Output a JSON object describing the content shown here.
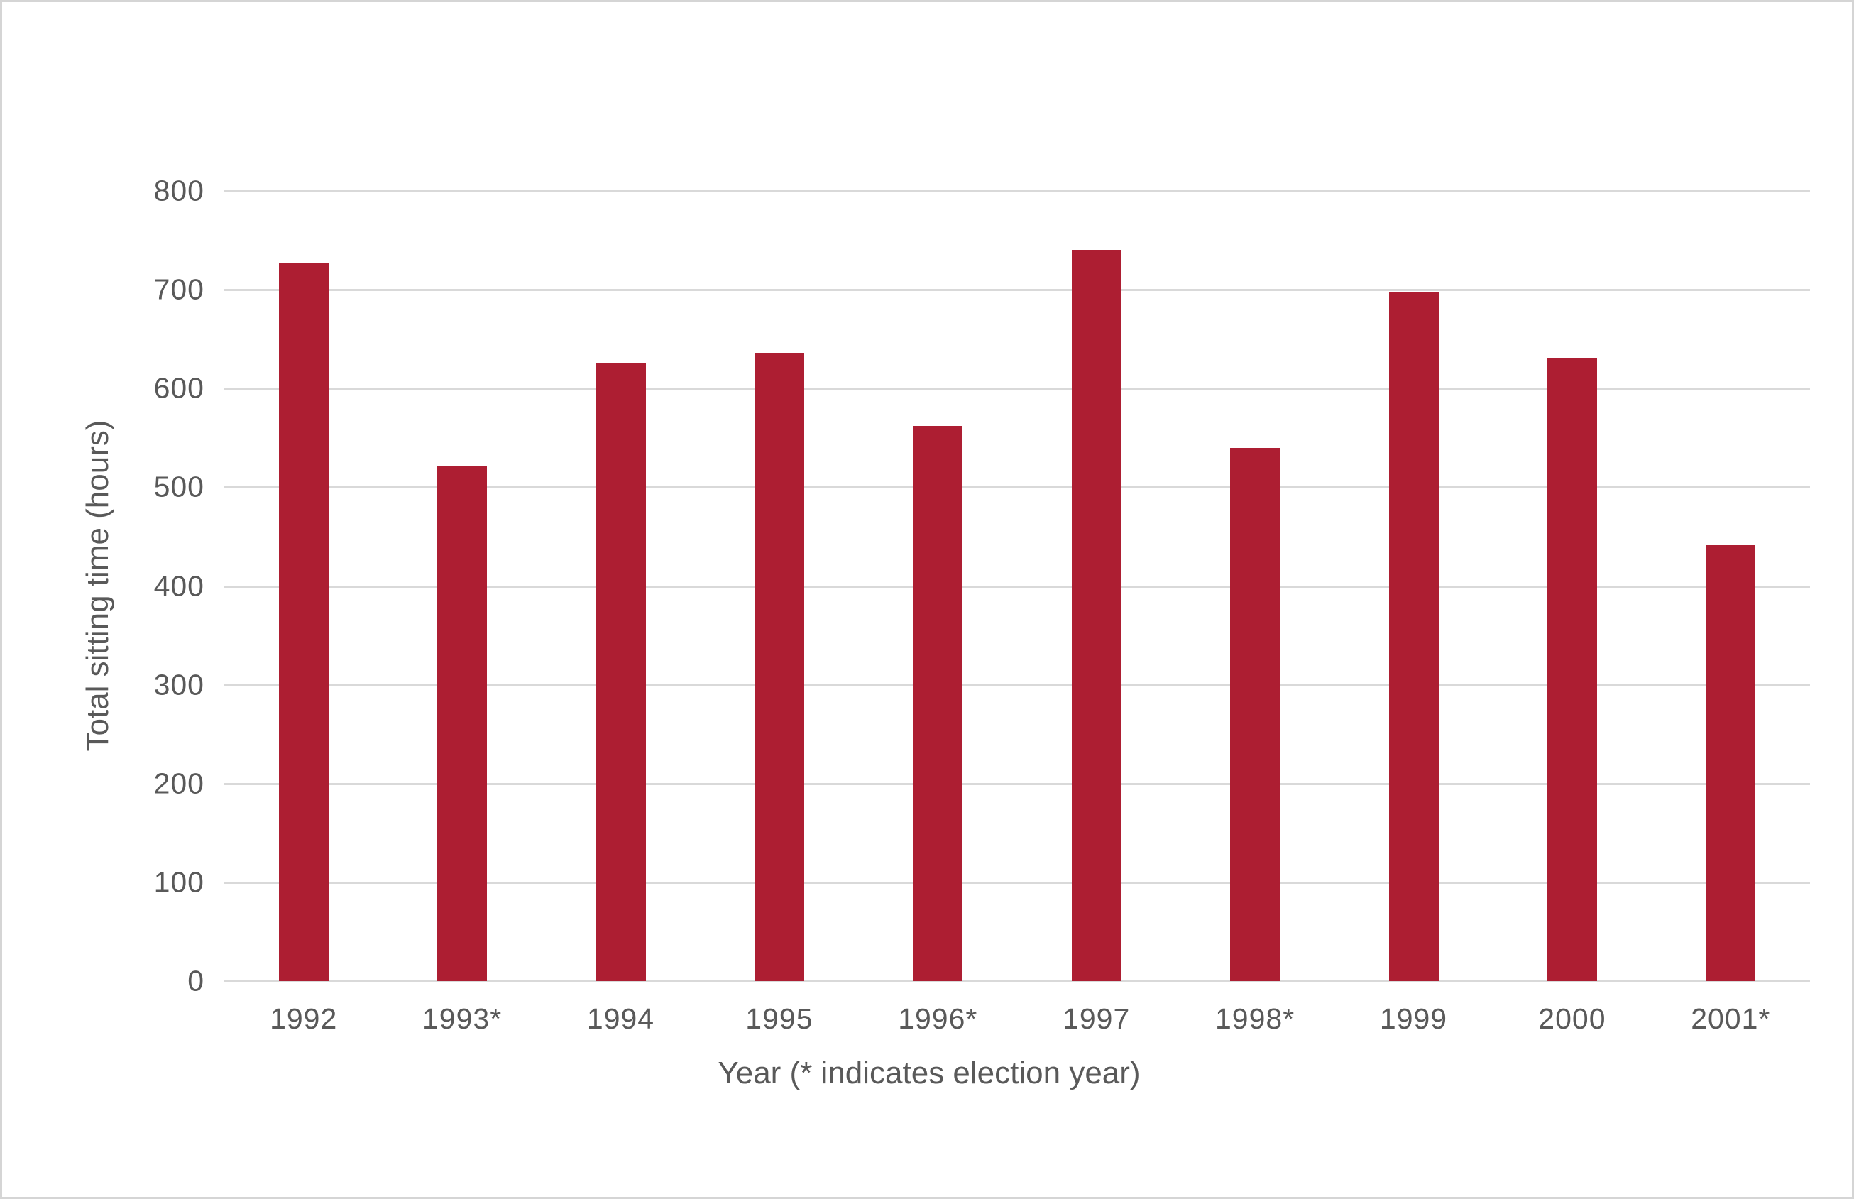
{
  "chart_data": {
    "type": "bar",
    "title": "",
    "xlabel": "Year (* indicates election year)",
    "ylabel": "Total sitting time (hours)",
    "categories": [
      "1992",
      "1993*",
      "1994",
      "1995",
      "1996*",
      "1997",
      "1998*",
      "1999",
      "2000",
      "2001*"
    ],
    "values": [
      727,
      521,
      626,
      636,
      562,
      740,
      540,
      697,
      631,
      441
    ],
    "ylim": [
      0,
      800
    ],
    "yticks": [
      0,
      100,
      200,
      300,
      400,
      500,
      600,
      700,
      800
    ],
    "grid": "horizontal",
    "legend_position": "none",
    "colors": {
      "bar": "#ad1e32",
      "text": "#595959",
      "gridline": "#d9d9d9",
      "border": "#d5d5d5"
    }
  }
}
